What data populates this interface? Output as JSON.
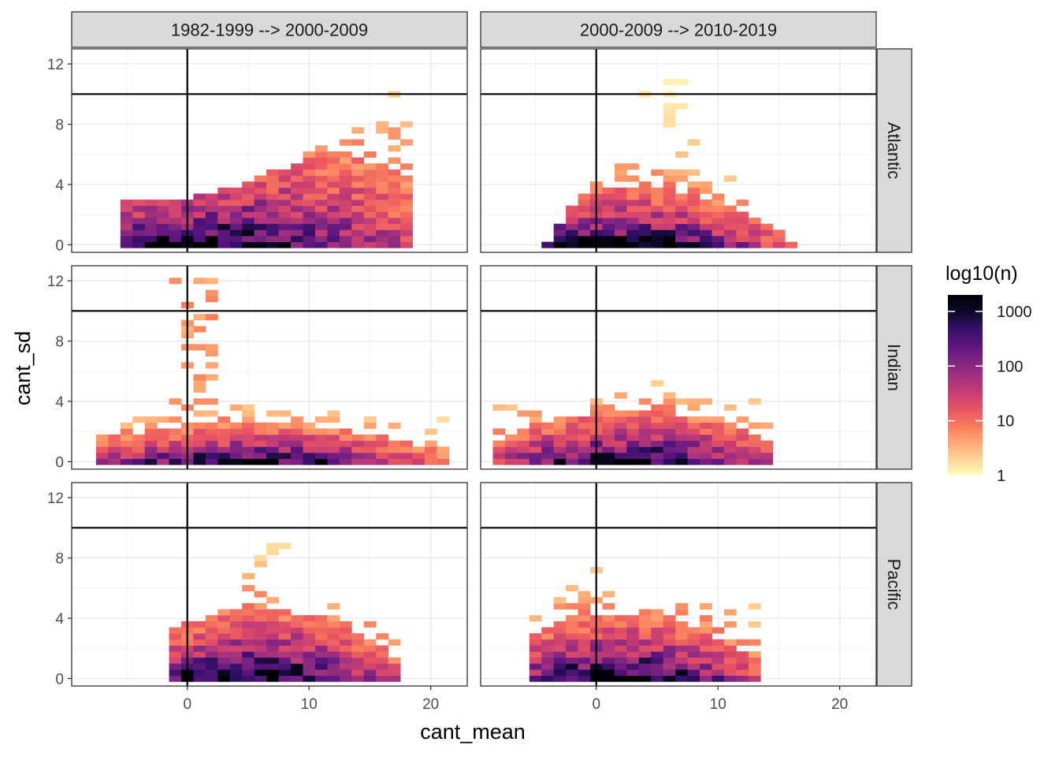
{
  "chart_data": {
    "type": "heatmap",
    "title": "",
    "xlabel": "cant_mean",
    "ylabel": "cant_sd",
    "xlim": [
      -9.5,
      23
    ],
    "ylim": [
      -0.5,
      13
    ],
    "x_ticks": [
      0,
      10,
      20
    ],
    "y_ticks": [
      0,
      4,
      8,
      12
    ],
    "x_tick_labels": [
      "0",
      "10",
      "20"
    ],
    "y_tick_labels": [
      "0",
      "4",
      "8",
      "12"
    ],
    "reference_lines": {
      "vertical_x": 0,
      "horizontal_y": 10
    },
    "columns": [
      "1982-1999 --> 2000-2009",
      "2000-2009 --> 2010-2019"
    ],
    "rows": [
      "Atlantic",
      "Indian",
      "Pacific"
    ],
    "bin_width": [
      1,
      0.4
    ],
    "legend": {
      "title": "log10(n)",
      "scale": "log10",
      "range": [
        1,
        2000
      ],
      "breaks": [
        1,
        10,
        100,
        1000
      ],
      "break_labels": [
        "1",
        "10",
        "100",
        "1000"
      ],
      "palette": [
        "#fcfdbf",
        "#fed395",
        "#fea873",
        "#f97c5d",
        "#e95462",
        "#c83e73",
        "#a3307e",
        "#7e2482",
        "#59157e",
        "#331067",
        "#0c0927",
        "#000004"
      ]
    },
    "panels": [
      {
        "column": "1982-1999 --> 2000-2009",
        "row": "Atlantic",
        "x_range": [
          -5,
          17.5
        ],
        "y_range": [
          0,
          10.3
        ],
        "shape": "rising band: wide near sd 0-4 at low mean, climbing to sd ~10 near mean 16-17",
        "peak": {
          "x": 0,
          "y": 0.3,
          "n": 1200
        }
      },
      {
        "column": "2000-2009 --> 2010-2019",
        "row": "Atlantic",
        "x_range": [
          -4,
          15.5
        ],
        "y_range": [
          0,
          11.4
        ],
        "shape": "dome: dense below sd 4, sparse tail up to sd ~11 around mean 5-8",
        "peak": {
          "x": 0.5,
          "y": 0.3,
          "n": 1500
        }
      },
      {
        "column": "1982-1999 --> 2000-2009",
        "row": "Indian",
        "x_range": [
          -7,
          21
        ],
        "y_range": [
          0,
          12.2
        ],
        "shape": "flat band below sd 3, isolated bins near mean 0-5 up to sd 12",
        "peak": {
          "x": 1,
          "y": 0.3,
          "n": 900
        }
      },
      {
        "column": "2000-2009 --> 2010-2019",
        "row": "Indian",
        "x_range": [
          -8,
          13.5
        ],
        "y_range": [
          0,
          5.6
        ],
        "shape": "compact band below sd 5",
        "peak": {
          "x": 0.5,
          "y": 0.3,
          "n": 1300
        }
      },
      {
        "column": "1982-1999 --> 2000-2009",
        "row": "Pacific",
        "x_range": [
          -1,
          16.5
        ],
        "y_range": [
          0,
          9.4
        ],
        "shape": "dome centered near mean 7, sd up to ~9",
        "peak": {
          "x": 0,
          "y": 0.3,
          "n": 2000
        }
      },
      {
        "column": "2000-2009 --> 2010-2019",
        "row": "Pacific",
        "x_range": [
          -5,
          12.5
        ],
        "y_range": [
          0,
          7.7
        ],
        "shape": "dome centered near mean 2-5, sd up to ~7",
        "peak": {
          "x": 0.5,
          "y": 0.3,
          "n": 1900
        }
      }
    ]
  }
}
